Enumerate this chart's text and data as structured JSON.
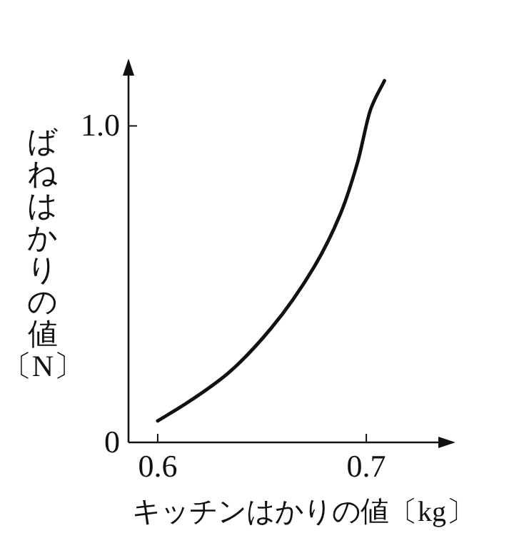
{
  "chart_data": {
    "type": "line",
    "xlabel": "キッチンはかりの値〔kg〕",
    "ylabel": "ばねはかりの値〔N〕",
    "x": [
      0.6,
      0.6129,
      0.6336,
      0.6544,
      0.6751,
      0.6876,
      0.6959,
      0.7021,
      0.7087
    ],
    "series": [
      {
        "color": "#111111",
        "values": [
          0.068,
          0.12,
          0.218,
          0.361,
          0.556,
          0.722,
          0.887,
          1.053,
          1.143
        ]
      }
    ],
    "xlim": [
      0.586,
      0.74
    ],
    "ylim": [
      0,
      1.195
    ],
    "xticks": [
      0.6,
      0.7
    ],
    "yticks": [
      0,
      {
        "value": 1,
        "label": "1.0"
      }
    ],
    "grid": false,
    "marker": "none",
    "line_style": "solid"
  }
}
